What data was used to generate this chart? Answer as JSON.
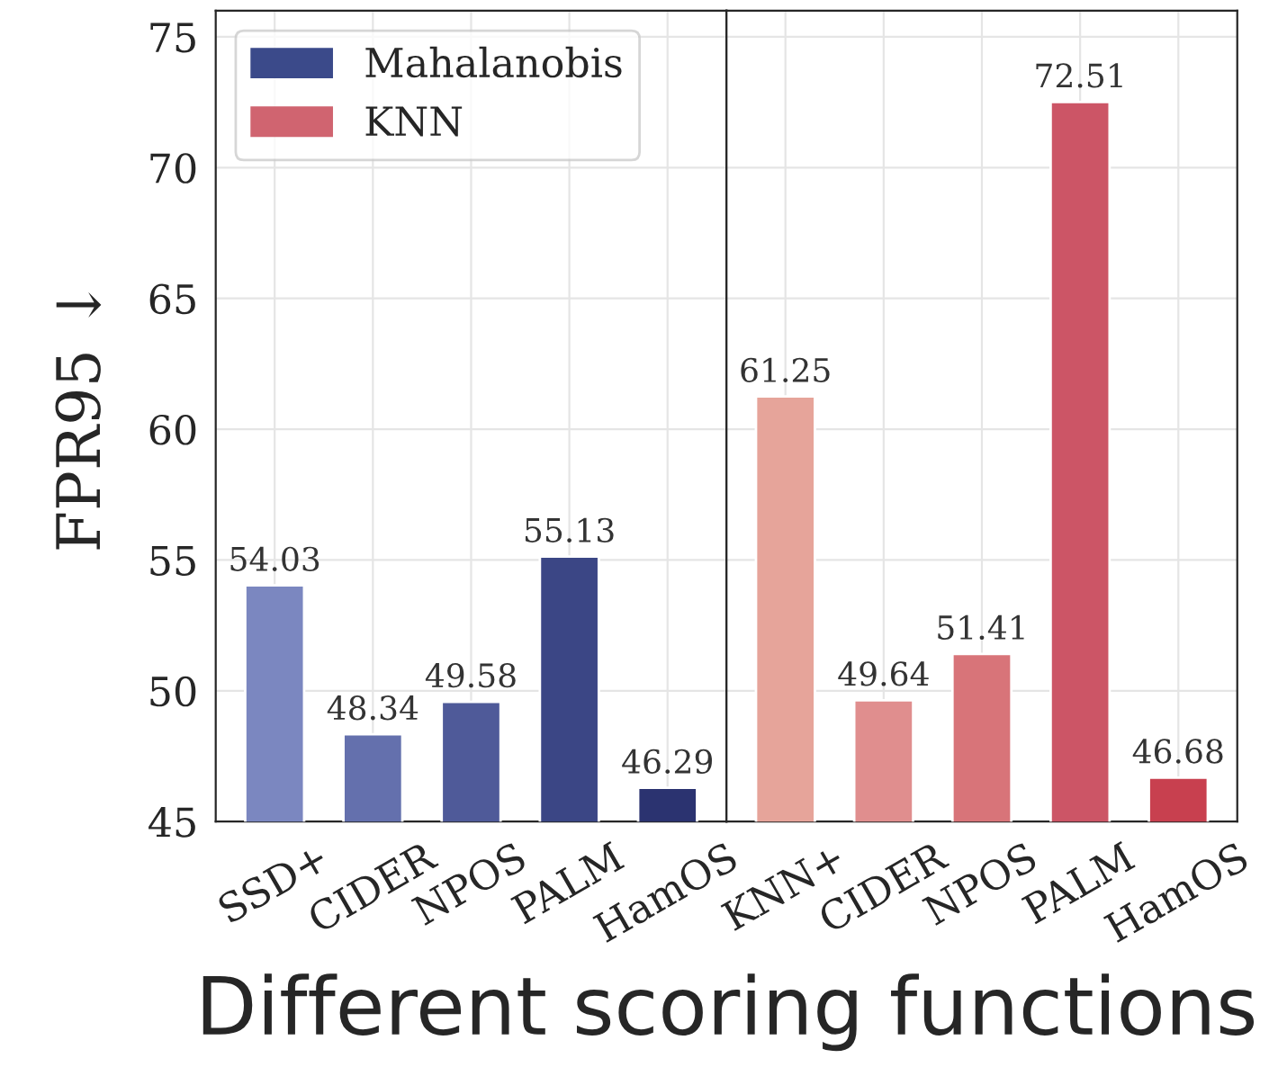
{
  "chart_data": [
    {
      "type": "bar",
      "xlabel": "Different scoring functions",
      "ylabel": "FPR95 ↓",
      "categories": [
        "SSD+",
        "CIDER",
        "NPOS",
        "PALM",
        "HamOS"
      ],
      "series": [
        {
          "name": "Mahalanobis",
          "color": "#3b4a8a",
          "colors": [
            "#7b87c0",
            "#6470ad",
            "#4f5a99",
            "#3b4685",
            "#2b3370"
          ],
          "values": [
            54.03,
            48.34,
            49.58,
            55.13,
            46.29
          ]
        }
      ],
      "ylim": [
        45,
        76
      ],
      "yticks": [
        45,
        50,
        55,
        60,
        65,
        70,
        75
      ],
      "grid": true,
      "legend": "top left",
      "data_labels": true
    },
    {
      "type": "bar",
      "categories": [
        "KNN+",
        "CIDER",
        "NPOS",
        "PALM",
        "HamOS"
      ],
      "series": [
        {
          "name": "KNN",
          "color": "#d06470",
          "colors": [
            "#e6a49a",
            "#e08e8e",
            "#d87479",
            "#cc5566",
            "#c8404f"
          ],
          "values": [
            61.25,
            49.64,
            51.41,
            72.51,
            46.68
          ]
        }
      ],
      "ylim": [
        45,
        76
      ],
      "tick_labels": "x",
      "grid": true,
      "data_labels": true
    }
  ]
}
